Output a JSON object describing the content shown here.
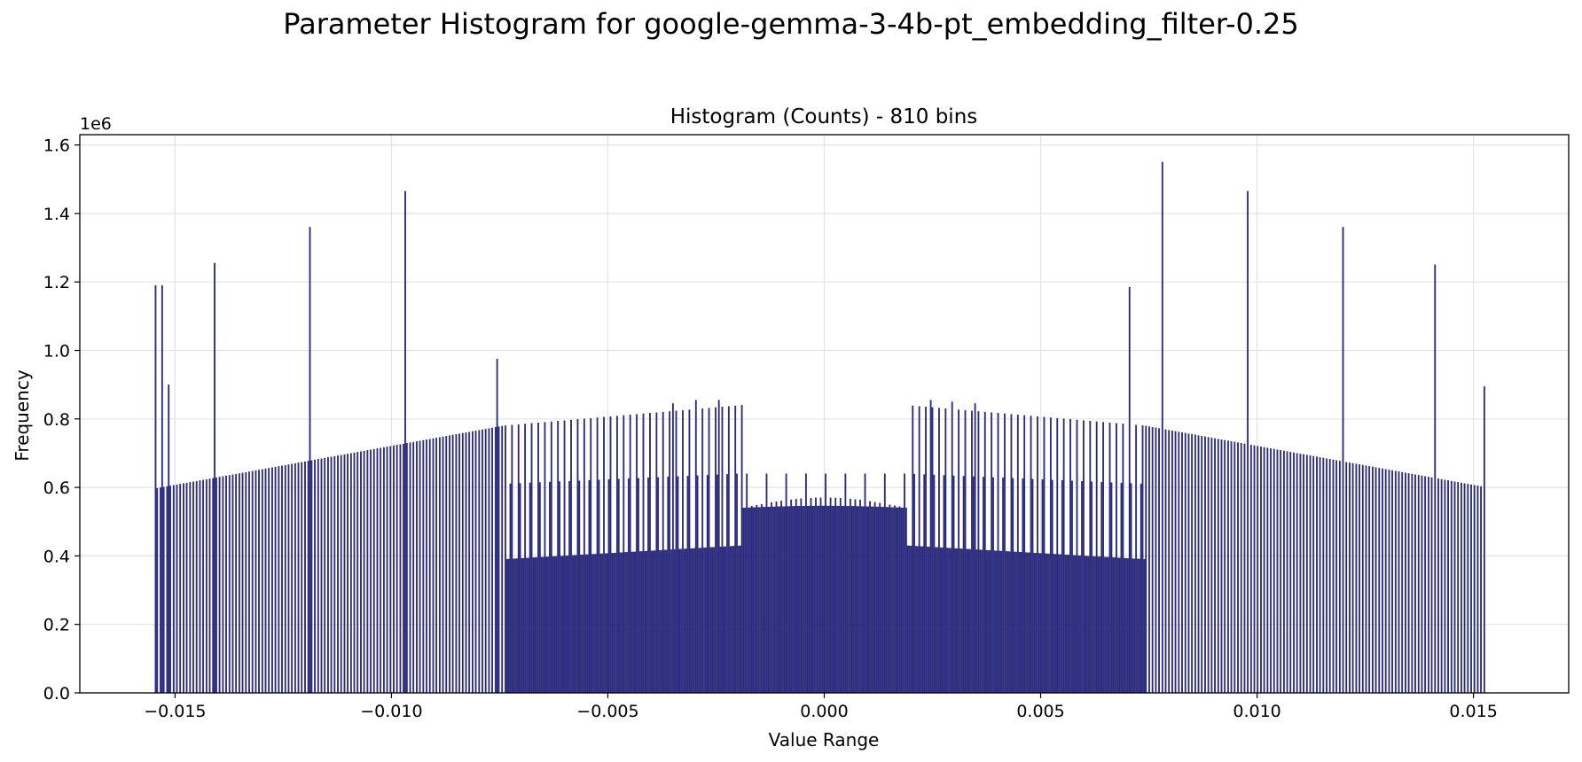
{
  "figure_title": "Parameter Histogram for google-gemma-3-4b-pt_embedding_filter-0.25",
  "chart_data": {
    "type": "bar",
    "title": "Histogram (Counts) - 810 bins",
    "xlabel": "Value Range",
    "ylabel": "Frequency",
    "y_offset_label": "1e6",
    "xlim": [
      -0.0172,
      0.0172
    ],
    "ylim": [
      0,
      1.63
    ],
    "x_ticks": [
      -0.015,
      -0.01,
      -0.005,
      0.0,
      0.005,
      0.01,
      0.015
    ],
    "x_tick_labels": [
      "−0.015",
      "−0.010",
      "−0.005",
      "0.000",
      "0.005",
      "0.010",
      "0.015"
    ],
    "y_ticks": [
      0.0,
      0.2,
      0.4,
      0.6,
      0.8,
      1.0,
      1.2,
      1.4,
      1.6
    ],
    "y_tick_labels": [
      "0.0",
      "0.2",
      "0.4",
      "0.6",
      "0.8",
      "1.0",
      "1.2",
      "1.4",
      "1.6"
    ],
    "grid": true,
    "bar_color": "#2a2a8c",
    "bar_edge_color": "#15154f",
    "bin_range": [
      -0.01545,
      0.01525
    ],
    "num_bins": 810,
    "value_unit": "millions (1e6)",
    "spikes": [
      {
        "x": -0.01545,
        "y": 1.19
      },
      {
        "x": -0.0153,
        "y": 1.19
      },
      {
        "x": -0.01515,
        "y": 0.9
      },
      {
        "x": -0.0141,
        "y": 1.255
      },
      {
        "x": -0.0119,
        "y": 1.36
      },
      {
        "x": -0.0097,
        "y": 1.465
      },
      {
        "x": -0.00755,
        "y": 0.975
      },
      {
        "x": -0.0035,
        "y": 0.845
      },
      {
        "x": -0.00295,
        "y": 0.855
      },
      {
        "x": -0.00245,
        "y": 0.855
      },
      {
        "x": 0.00245,
        "y": 0.855
      },
      {
        "x": 0.00295,
        "y": 0.85
      },
      {
        "x": 0.0035,
        "y": 0.845
      },
      {
        "x": 0.00705,
        "y": 1.185
      },
      {
        "x": 0.0078,
        "y": 1.55
      },
      {
        "x": 0.0098,
        "y": 1.465
      },
      {
        "x": 0.012,
        "y": 1.36
      },
      {
        "x": 0.0141,
        "y": 1.25
      },
      {
        "x": 0.01525,
        "y": 0.895
      }
    ]
  }
}
